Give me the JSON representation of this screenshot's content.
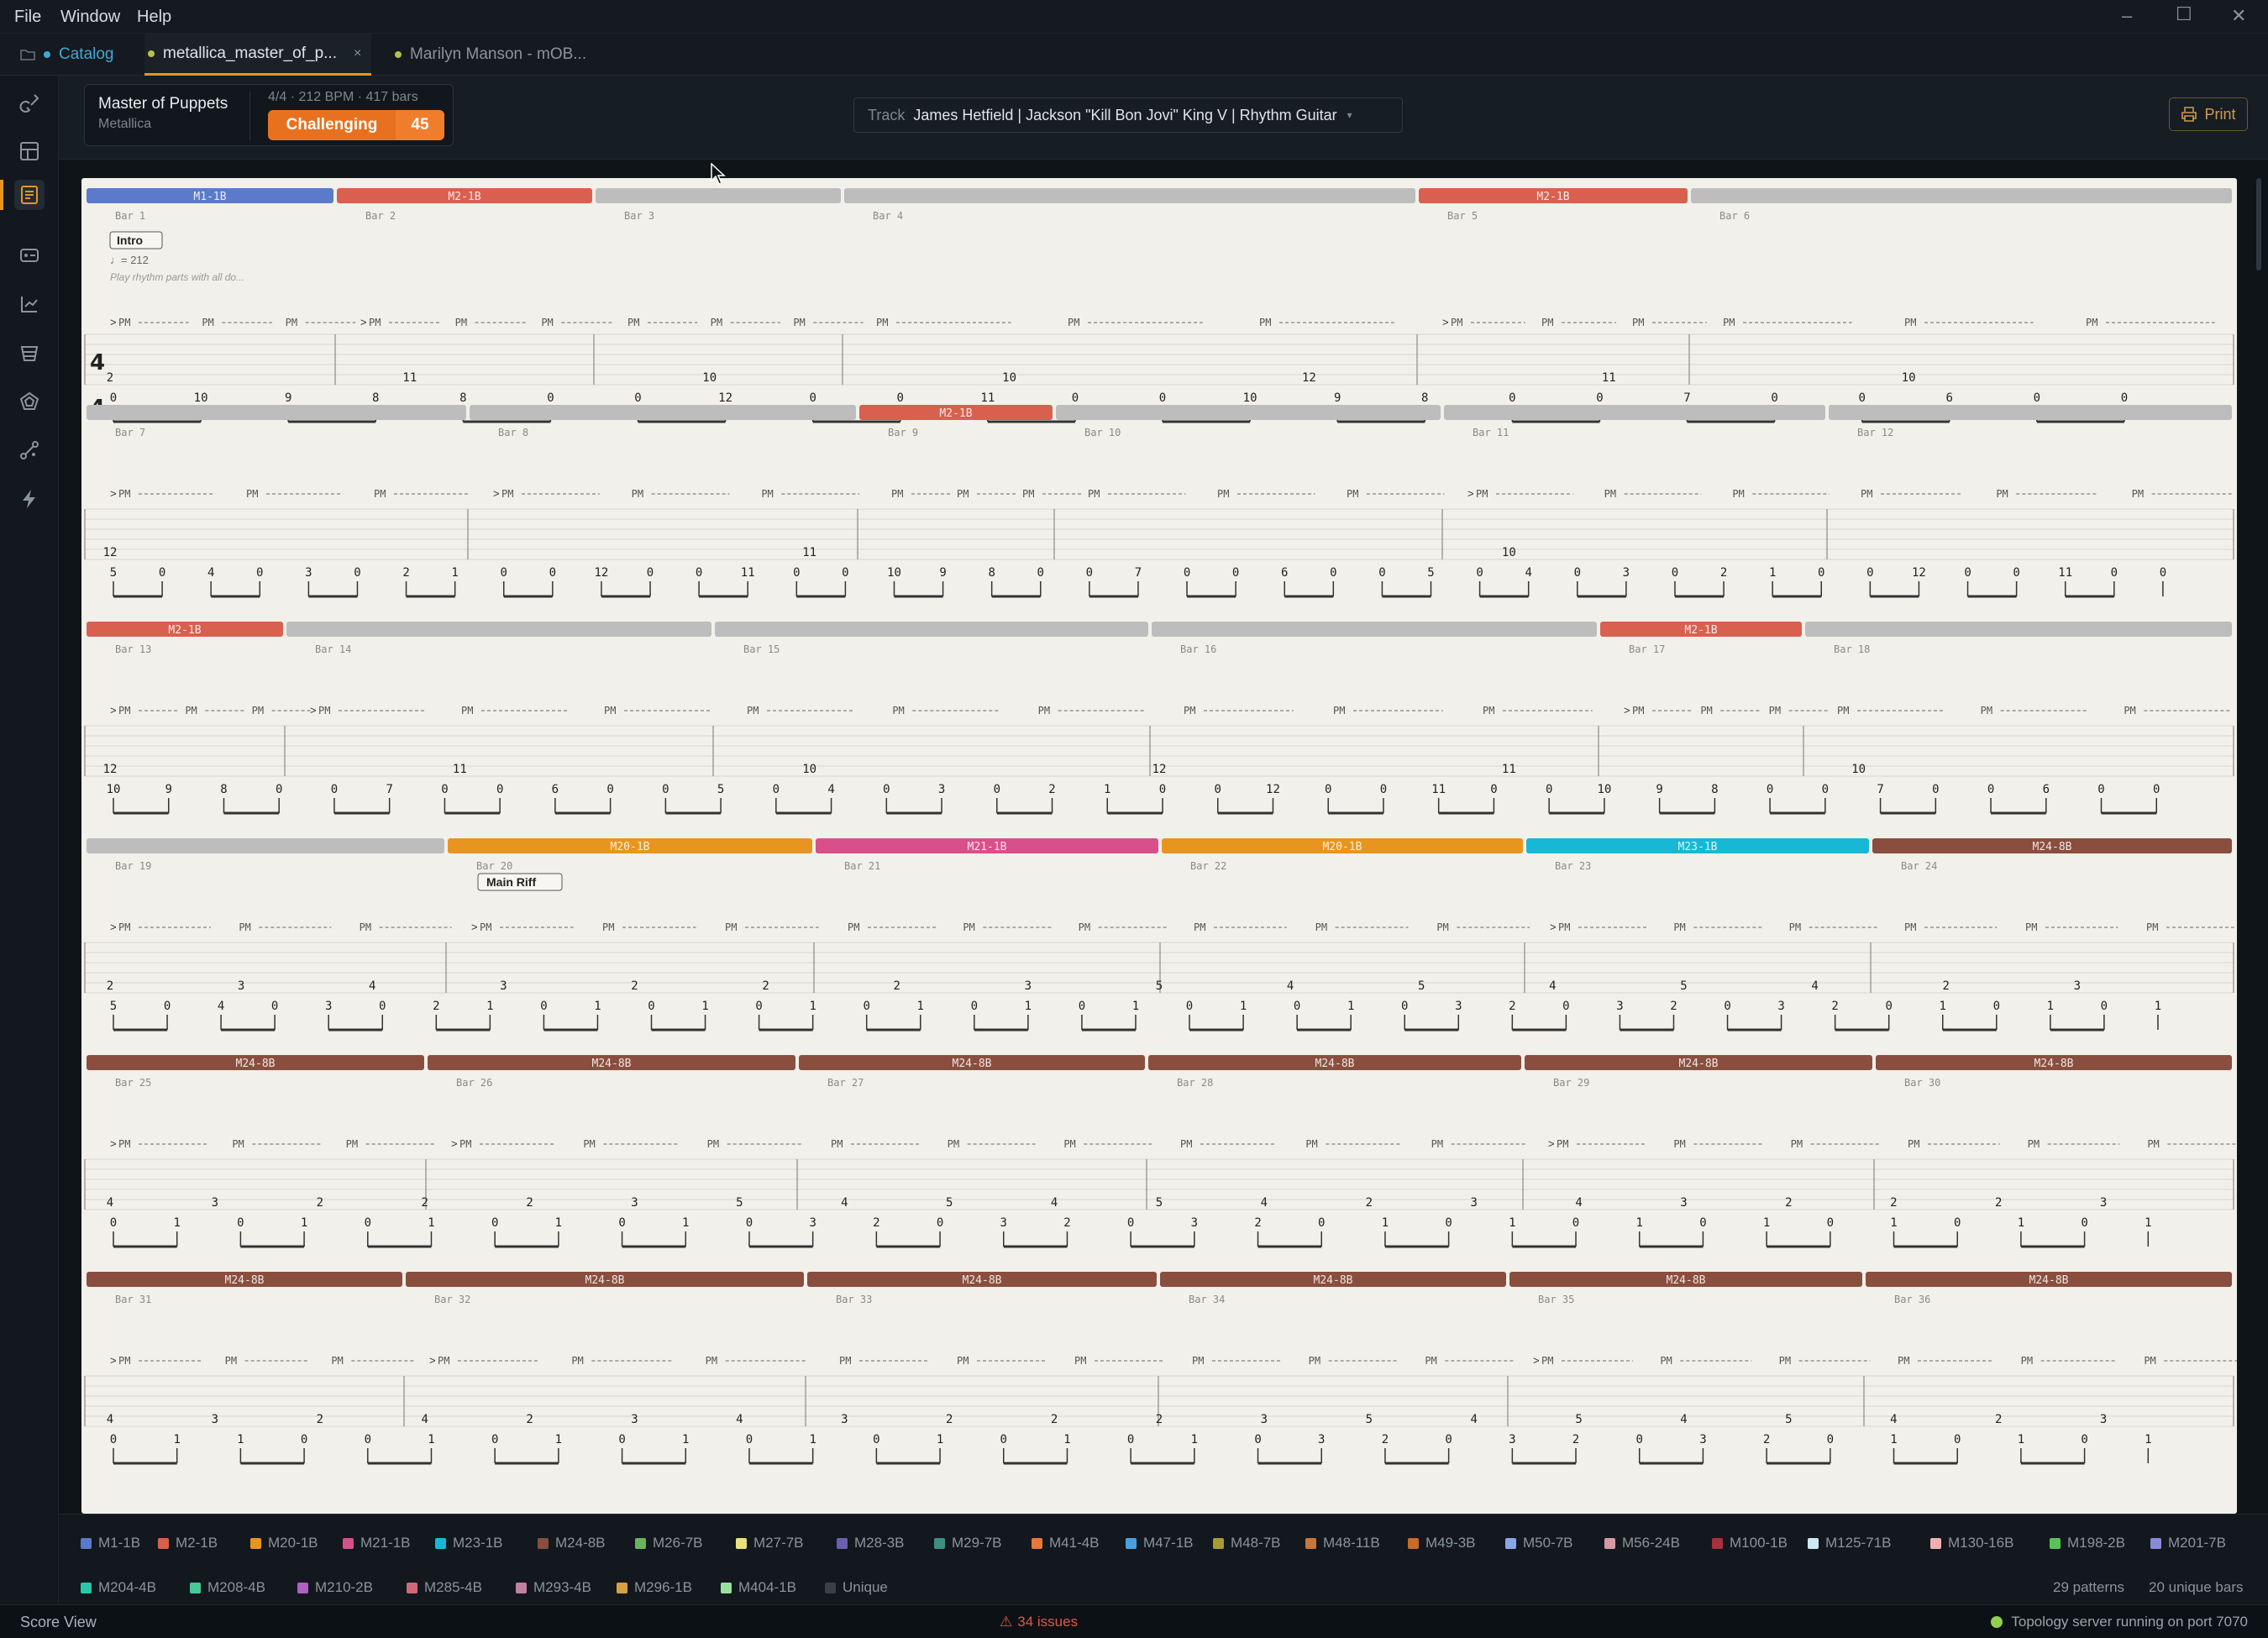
{
  "menu": {
    "file": "File",
    "window": "Window",
    "help": "Help"
  },
  "tabs": {
    "catalog": "Catalog",
    "active": "metallica_master_of_p...",
    "other": "Marilyn Manson - mOB..."
  },
  "song": {
    "title": "Master of Puppets",
    "artist": "Metallica",
    "meta": "4/4 · 212 BPM · 417 bars",
    "difficulty": "Challenging",
    "score": "45"
  },
  "track": {
    "label": "Track",
    "name": "James Hetfield | Jackson \"Kill Bon Jovi\" King V | Rhythm Guitar"
  },
  "print_label": "Print",
  "score_view": {
    "time_sig": [
      "4",
      "4"
    ],
    "section_intro": "Intro",
    "tempo": "♩= 212",
    "instruction": "Play rhythm parts with all do...",
    "section_main": "Main Riff",
    "pm": "PM",
    "accent": ">",
    "rows": [
      {
        "bars": [
          {
            "n": "Bar 1",
            "p": "M1-1B",
            "c": "#5b7ac9"
          },
          {
            "n": "Bar 2",
            "p": "M2-1B",
            "c": "#d9604e"
          },
          {
            "n": "Bar 3",
            "p": "",
            "c": "#bdbdbd"
          },
          {
            "n": "Bar 4",
            "p": "",
            "c": "#bdbdbd"
          },
          {
            "n": "Bar 5",
            "p": "M2-1B",
            "c": "#d9604e"
          },
          {
            "n": "Bar 6",
            "p": "",
            "c": "#bdbdbd"
          }
        ],
        "s2": [
          "2",
          "11",
          "10",
          "",
          "10",
          "",
          "",
          "",
          "",
          "",
          "12",
          "11",
          "10",
          "",
          ""
        ],
        "s1": [
          "0",
          "10",
          "9",
          "8",
          "8",
          "0",
          "0",
          "12",
          "0",
          "0",
          "11",
          "0",
          "0",
          "10",
          "9",
          "8",
          "0",
          "0",
          "7",
          "0",
          "0",
          "6",
          "0",
          "0"
        ]
      },
      {
        "bars": [
          {
            "n": "Bar 7",
            "p": "",
            "c": "#bdbdbd"
          },
          {
            "n": "Bar 8",
            "p": "",
            "c": "#bdbdbd"
          },
          {
            "n": "Bar 9",
            "p": "M2-1B",
            "c": "#d9604e"
          },
          {
            "n": "Bar 10",
            "p": "",
            "c": "#bdbdbd"
          },
          {
            "n": "Bar 11",
            "p": "",
            "c": "#bdbdbd"
          },
          {
            "n": "Bar 12",
            "p": "",
            "c": "#bdbdbd"
          }
        ],
        "s2": [
          "12",
          "11",
          "10"
        ],
        "s1": [
          "5",
          "0",
          "4",
          "0",
          "3",
          "0",
          "2",
          "1",
          "0",
          "0",
          "12",
          "0",
          "0",
          "11",
          "0",
          "0",
          "10",
          "9",
          "8",
          "0",
          "0",
          "7",
          "0",
          "0",
          "6",
          "0",
          "0",
          "5",
          "0",
          "4",
          "0",
          "3",
          "0",
          "2",
          "1",
          "0",
          "0",
          "12",
          "0",
          "0",
          "11",
          "0",
          "0"
        ]
      },
      {
        "bars": [
          {
            "n": "Bar 13",
            "p": "M2-1B",
            "c": "#d9604e"
          },
          {
            "n": "Bar 14",
            "p": "",
            "c": "#bdbdbd"
          },
          {
            "n": "Bar 15",
            "p": "",
            "c": "#bdbdbd"
          },
          {
            "n": "Bar 16",
            "p": "",
            "c": "#bdbdbd"
          },
          {
            "n": "Bar 17",
            "p": "M2-1B",
            "c": "#d9604e"
          },
          {
            "n": "Bar 18",
            "p": "",
            "c": "#bdbdbd"
          }
        ],
        "s2": [
          "12",
          "11",
          "10",
          "12",
          "11",
          "10"
        ],
        "s1": [
          "10",
          "9",
          "8",
          "0",
          "0",
          "7",
          "0",
          "0",
          "6",
          "0",
          "0",
          "5",
          "0",
          "4",
          "0",
          "3",
          "0",
          "2",
          "1",
          "0",
          "0",
          "12",
          "0",
          "0",
          "11",
          "0",
          "0",
          "10",
          "9",
          "8",
          "0",
          "0",
          "7",
          "0",
          "0",
          "6",
          "0",
          "0"
        ]
      },
      {
        "bars": [
          {
            "n": "Bar 19",
            "p": "",
            "c": "#bdbdbd"
          },
          {
            "n": "Bar 20",
            "p": "M20-1B",
            "c": "#e8951f"
          },
          {
            "n": "Bar 21",
            "p": "M21-1B",
            "c": "#d94f8a"
          },
          {
            "n": "Bar 22",
            "p": "M20-1B",
            "c": "#e8951f"
          },
          {
            "n": "Bar 23",
            "p": "M23-1B",
            "c": "#17b8d6"
          },
          {
            "n": "Bar 24",
            "p": "M24-8B",
            "c": "#8a4e3e"
          }
        ],
        "s2": [
          "2",
          "3",
          "4",
          "3",
          "2",
          "2",
          "2",
          "3",
          "5",
          "4",
          "5",
          "4",
          "5",
          "4",
          "2",
          "3"
        ],
        "s1": [
          "5",
          "0",
          "4",
          "0",
          "3",
          "0",
          "2",
          "1",
          "0",
          "1",
          "0",
          "1",
          "0",
          "1",
          "0",
          "1",
          "0",
          "1",
          "0",
          "1",
          "0",
          "1",
          "0",
          "1",
          "0",
          "3",
          "2",
          "0",
          "3",
          "2",
          "0",
          "3",
          "2",
          "0",
          "1",
          "0",
          "1",
          "0",
          "1"
        ]
      },
      {
        "bars": [
          {
            "n": "Bar 25",
            "p": "M24-8B",
            "c": "#8a4e3e"
          },
          {
            "n": "Bar 26",
            "p": "M24-8B",
            "c": "#8a4e3e"
          },
          {
            "n": "Bar 27",
            "p": "M24-8B",
            "c": "#8a4e3e"
          },
          {
            "n": "Bar 28",
            "p": "M24-8B",
            "c": "#8a4e3e"
          },
          {
            "n": "Bar 29",
            "p": "M24-8B",
            "c": "#8a4e3e"
          },
          {
            "n": "Bar 30",
            "p": "M24-8B",
            "c": "#8a4e3e"
          }
        ],
        "s2": [
          "4",
          "3",
          "2",
          "2",
          "2",
          "3",
          "5",
          "4",
          "5",
          "4",
          "5",
          "4",
          "2",
          "3",
          "4",
          "3",
          "2",
          "2",
          "2",
          "3"
        ],
        "s1": [
          "0",
          "1",
          "0",
          "1",
          "0",
          "1",
          "0",
          "1",
          "0",
          "1",
          "0",
          "3",
          "2",
          "0",
          "3",
          "2",
          "0",
          "3",
          "2",
          "0",
          "1",
          "0",
          "1",
          "0",
          "1",
          "0",
          "1",
          "0",
          "1",
          "0",
          "1",
          "0",
          "1"
        ]
      },
      {
        "bars": [
          {
            "n": "Bar 31",
            "p": "M24-8B",
            "c": "#8a4e3e"
          },
          {
            "n": "Bar 32",
            "p": "M24-8B",
            "c": "#8a4e3e"
          },
          {
            "n": "Bar 33",
            "p": "M24-8B",
            "c": "#8a4e3e"
          },
          {
            "n": "Bar 34",
            "p": "M24-8B",
            "c": "#8a4e3e"
          },
          {
            "n": "Bar 35",
            "p": "M24-8B",
            "c": "#8a4e3e"
          },
          {
            "n": "Bar 36",
            "p": "M24-8B",
            "c": "#8a4e3e"
          }
        ],
        "s2": [
          "4",
          "3",
          "2",
          "4",
          "2",
          "3",
          "4",
          "3",
          "2",
          "2",
          "2",
          "3",
          "5",
          "4",
          "5",
          "4",
          "5",
          "4",
          "2",
          "3"
        ],
        "s1": [
          "0",
          "1",
          "1",
          "0",
          "0",
          "1",
          "0",
          "1",
          "0",
          "1",
          "0",
          "1",
          "0",
          "1",
          "0",
          "1",
          "0",
          "1",
          "0",
          "3",
          "2",
          "0",
          "3",
          "2",
          "0",
          "3",
          "2",
          "0",
          "1",
          "0",
          "1",
          "0",
          "1"
        ]
      }
    ]
  },
  "legend": [
    {
      "label": "M1-1B",
      "color": "#5b7ac9"
    },
    {
      "label": "M2-1B",
      "color": "#d9604e"
    },
    {
      "label": "M20-1B",
      "color": "#e8951f"
    },
    {
      "label": "M21-1B",
      "color": "#d94f8a"
    },
    {
      "label": "M23-1B",
      "color": "#17b8d6"
    },
    {
      "label": "M24-8B",
      "color": "#8a4e3e"
    },
    {
      "label": "M26-7B",
      "color": "#6bb35a"
    },
    {
      "label": "M27-7B",
      "color": "#e8e07a"
    },
    {
      "label": "M28-3B",
      "color": "#6c5fb0"
    },
    {
      "label": "M29-7B",
      "color": "#3d8f80"
    },
    {
      "label": "M41-4B",
      "color": "#e8783a"
    },
    {
      "label": "M47-1B",
      "color": "#4a9fe0"
    },
    {
      "label": "M48-7B",
      "color": "#a89a36"
    },
    {
      "label": "M48-11B",
      "color": "#c8763a"
    },
    {
      "label": "M49-3B",
      "color": "#c86a28"
    },
    {
      "label": "M50-7B",
      "color": "#8aa4e8"
    },
    {
      "label": "M56-24B",
      "color": "#d49aa4"
    },
    {
      "label": "M100-1B",
      "color": "#a83040"
    },
    {
      "label": "M125-71B",
      "color": "#cce8f0"
    },
    {
      "label": "M130-16B",
      "color": "#f0b0b0"
    },
    {
      "label": "M198-2B",
      "color": "#5ac05a"
    },
    {
      "label": "M201-7B",
      "color": "#8a8ad8"
    },
    {
      "label": "M204-4B",
      "color": "#28c8a8"
    },
    {
      "label": "M208-4B",
      "color": "#48c898"
    },
    {
      "label": "M210-2B",
      "color": "#b060c0"
    },
    {
      "label": "M285-4B",
      "color": "#d06878"
    },
    {
      "label": "M293-4B",
      "color": "#c080a0"
    },
    {
      "label": "M296-1B",
      "color": "#d8a040"
    },
    {
      "label": "M404-1B",
      "color": "#98e0a0"
    },
    {
      "label": "Unique",
      "color": "#3a4048"
    }
  ],
  "legend_summary": {
    "patterns": "29 patterns",
    "unique": "20 unique bars"
  },
  "status": {
    "view": "Score View",
    "issues": "34 issues",
    "server": "Topology server running on port 7070"
  }
}
